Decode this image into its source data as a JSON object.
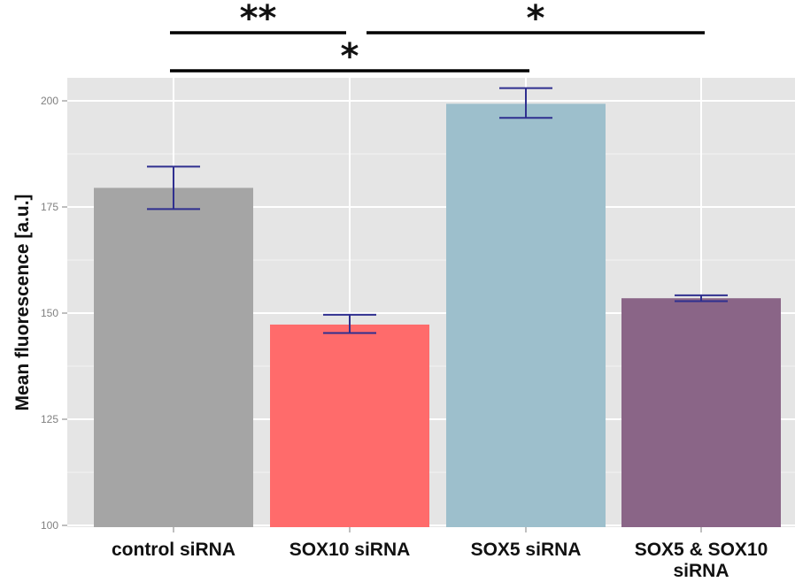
{
  "chart_data": {
    "type": "bar",
    "ylabel": "Mean fluorescence [a.u.]",
    "ylim": [
      100,
      205
    ],
    "yticks": [
      100,
      125,
      150,
      175,
      200
    ],
    "grid": true,
    "legend": "none",
    "categories": [
      {
        "lines": [
          "control siRNA"
        ]
      },
      {
        "lines": [
          "SOX10 siRNA"
        ]
      },
      {
        "lines": [
          "SOX5 siRNA"
        ]
      },
      {
        "lines": [
          "SOX5 & SOX10",
          "siRNA"
        ]
      }
    ],
    "values": [
      179.5,
      147.3,
      199.3,
      153.5
    ],
    "error_low": [
      174.5,
      145.3,
      196.0,
      152.8
    ],
    "error_high": [
      184.5,
      149.6,
      203.0,
      154.2
    ],
    "colors": [
      "#a5a5a5",
      "#ff6b6b",
      "#9dbfcc",
      "#8a6587"
    ],
    "error_color": "#2f2f8f",
    "panel_color": "#e5e5e5",
    "significance": [
      {
        "from": 0,
        "to": 1,
        "label": "**",
        "tier": 1
      },
      {
        "from": 1,
        "to": 3,
        "label": "*",
        "tier": 1
      },
      {
        "from": 0,
        "to": 2,
        "label": "*",
        "tier": 0
      }
    ]
  }
}
